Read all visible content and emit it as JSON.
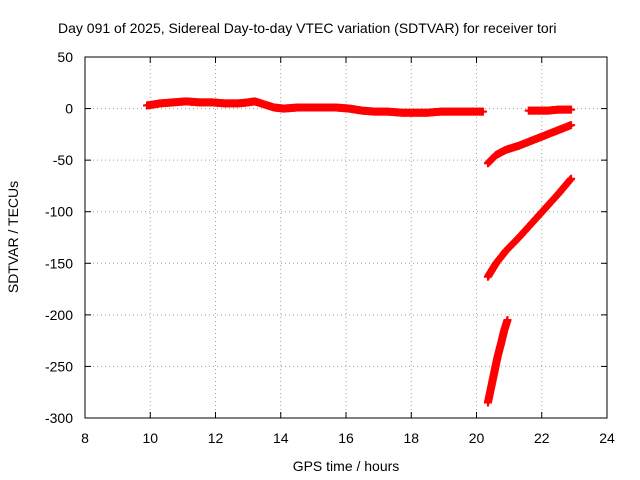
{
  "chart_data": {
    "type": "scatter",
    "title": "Day 091 of 2025, Sidereal Day-to-day VTEC variation (SDTVAR) for receiver tori",
    "xlabel": "GPS time / hours",
    "ylabel": "SDTVAR / TECUs",
    "xlim": [
      8,
      24
    ],
    "ylim": [
      -300,
      50
    ],
    "x_ticks": [
      8,
      10,
      12,
      14,
      16,
      18,
      20,
      22,
      24
    ],
    "y_ticks": [
      -300,
      -250,
      -200,
      -150,
      -100,
      -50,
      0,
      50
    ],
    "grid": true,
    "marker": "plus",
    "color": "#ff0000",
    "series": [
      {
        "x": [
          9.9,
          10.3,
          10.7,
          11.1,
          11.5,
          11.9,
          12.3,
          12.7,
          13.0,
          13.2,
          13.5,
          13.8,
          14.1,
          14.5,
          14.9,
          15.3,
          15.7,
          16.1,
          16.5,
          16.9,
          17.3,
          17.7,
          18.1,
          18.5,
          18.9,
          19.3,
          19.7,
          20.2
        ],
        "y": [
          3,
          5,
          6,
          7,
          6,
          6,
          5,
          5,
          6,
          7,
          4,
          1,
          0,
          1,
          1,
          1,
          1,
          0,
          -2,
          -3,
          -3,
          -4,
          -4,
          -4,
          -3,
          -3,
          -3,
          -3
        ]
      },
      {
        "x": [
          21.6,
          21.9,
          22.2,
          22.5,
          22.9
        ],
        "y": [
          -2,
          -2,
          -2,
          -1,
          -1
        ]
      },
      {
        "x": [
          20.35,
          20.6,
          20.9,
          21.3,
          21.7,
          22.1,
          22.5,
          22.9
        ],
        "y": [
          -53,
          -45,
          -40,
          -36,
          -31,
          -26,
          -21,
          -16
        ]
      },
      {
        "x": [
          20.35,
          20.6,
          20.9,
          21.3,
          21.7,
          22.1,
          22.5,
          22.9
        ],
        "y": [
          -163,
          -150,
          -138,
          -125,
          -111,
          -97,
          -83,
          -68
        ]
      },
      {
        "x": [
          20.35,
          20.45,
          20.55,
          20.65,
          20.75,
          20.85,
          20.95
        ],
        "y": [
          -285,
          -270,
          -255,
          -240,
          -228,
          -215,
          -205
        ]
      }
    ]
  }
}
